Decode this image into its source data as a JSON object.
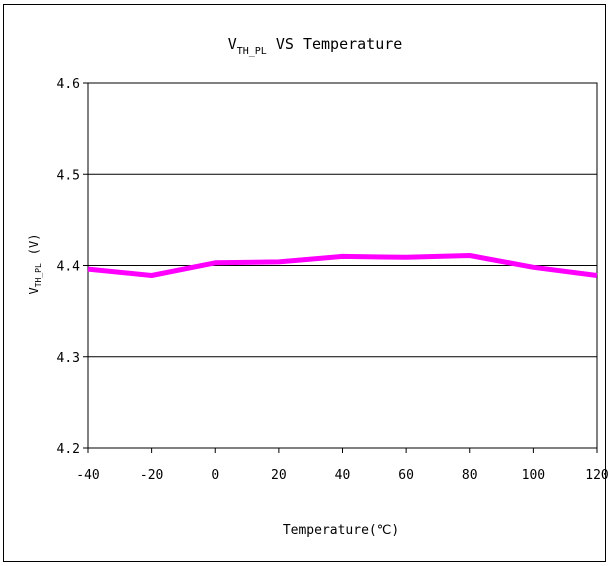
{
  "chart_data": {
    "type": "line",
    "title": {
      "main": "V",
      "sub": "TH_PL",
      "rest": " VS Temperature"
    },
    "ylabel": {
      "main": "V",
      "sub": "TH_PL",
      "unit": "(V)"
    },
    "xlabel": "Temperature(℃)",
    "x": [
      -40,
      -20,
      0,
      20,
      40,
      60,
      80,
      100,
      120
    ],
    "x_ticks": [
      "-40",
      "-20",
      "0",
      "20",
      "40",
      "60",
      "80",
      "100",
      "120"
    ],
    "y_ticks": [
      "4.6",
      "4.5",
      "4.4",
      "4.3",
      "4.2"
    ],
    "ylim": [
      4.2,
      4.6
    ],
    "xlim": [
      -40,
      120
    ],
    "grid": "horizontal",
    "series": [
      {
        "values": [
          4.396,
          4.389,
          4.403,
          4.404,
          4.41,
          4.409,
          4.411,
          4.398,
          4.389
        ],
        "color": "#ff00ff"
      }
    ]
  }
}
